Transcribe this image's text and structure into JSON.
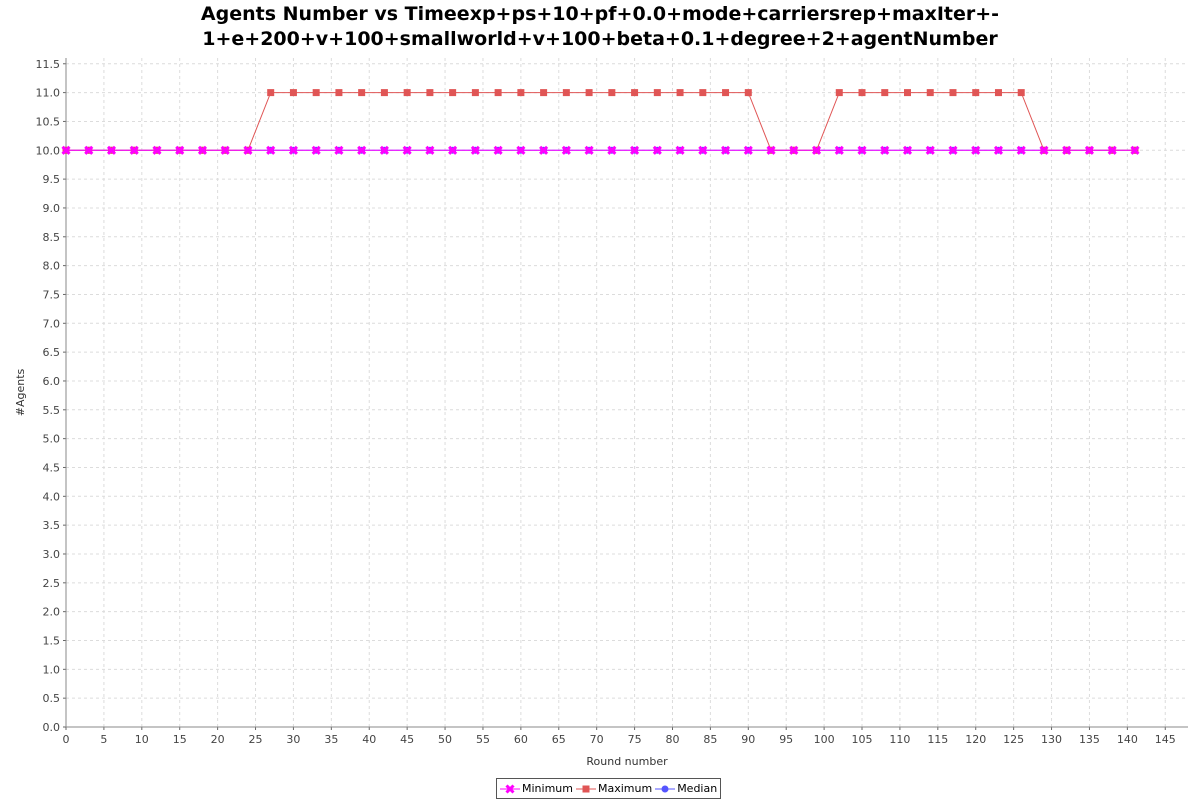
{
  "chart_data": {
    "type": "line",
    "title_lines": [
      "Agents Number vs Timeexp+ps+10+pf+0.0+mode+carriersrep+maxIter+-",
      "1+e+200+v+100+smallworld+v+100+beta+0.1+degree+2+agentNumber"
    ],
    "xlabel": "Round number",
    "ylabel": "#Agents",
    "xlim": [
      0,
      148
    ],
    "ylim": [
      0,
      11.6
    ],
    "x_ticks": [
      "0",
      "5",
      "10",
      "15",
      "20",
      "25",
      "30",
      "35",
      "40",
      "45",
      "50",
      "55",
      "60",
      "65",
      "70",
      "75",
      "80",
      "85",
      "90",
      "95",
      "100",
      "105",
      "110",
      "115",
      "120",
      "125",
      "130",
      "135",
      "140",
      "145"
    ],
    "y_ticks": [
      "0.0",
      "0.5",
      "1.0",
      "1.5",
      "2.0",
      "2.5",
      "3.0",
      "3.5",
      "4.0",
      "4.5",
      "5.0",
      "5.5",
      "6.0",
      "6.5",
      "7.0",
      "7.5",
      "8.0",
      "8.5",
      "9.0",
      "9.5",
      "10.0",
      "10.5",
      "11.0",
      "11.5"
    ],
    "grid": true,
    "legend_position": "bottom",
    "x": [
      0,
      3,
      6,
      9,
      12,
      15,
      18,
      21,
      24,
      27,
      30,
      33,
      36,
      39,
      42,
      45,
      48,
      51,
      54,
      57,
      60,
      63,
      66,
      69,
      72,
      75,
      78,
      81,
      84,
      87,
      90,
      93,
      96,
      99,
      102,
      105,
      108,
      111,
      114,
      117,
      120,
      123,
      126,
      129,
      132,
      135,
      138,
      141
    ],
    "series": [
      {
        "name": "Minimum",
        "color": "#ff00ff",
        "marker": "x",
        "values": [
          10,
          10,
          10,
          10,
          10,
          10,
          10,
          10,
          10,
          10,
          10,
          10,
          10,
          10,
          10,
          10,
          10,
          10,
          10,
          10,
          10,
          10,
          10,
          10,
          10,
          10,
          10,
          10,
          10,
          10,
          10,
          10,
          10,
          10,
          10,
          10,
          10,
          10,
          10,
          10,
          10,
          10,
          10,
          10,
          10,
          10,
          10,
          10
        ]
      },
      {
        "name": "Maximum",
        "color": "#e05555",
        "marker": "square",
        "values": [
          10,
          10,
          10,
          10,
          10,
          10,
          10,
          10,
          10,
          11,
          11,
          11,
          11,
          11,
          11,
          11,
          11,
          11,
          11,
          11,
          11,
          11,
          11,
          11,
          11,
          11,
          11,
          11,
          11,
          11,
          11,
          10,
          10,
          10,
          11,
          11,
          11,
          11,
          11,
          11,
          11,
          11,
          11,
          10,
          10,
          10,
          10,
          10
        ]
      },
      {
        "name": "Median",
        "color": "#5555ff",
        "marker": "circle",
        "values": [
          10,
          10,
          10,
          10,
          10,
          10,
          10,
          10,
          10,
          10,
          10,
          10,
          10,
          10,
          10,
          10,
          10,
          10,
          10,
          10,
          10,
          10,
          10,
          10,
          10,
          10,
          10,
          10,
          10,
          10,
          10,
          10,
          10,
          10,
          10,
          10,
          10,
          10,
          10,
          10,
          10,
          10,
          10,
          10,
          10,
          10,
          10,
          10
        ]
      }
    ]
  }
}
